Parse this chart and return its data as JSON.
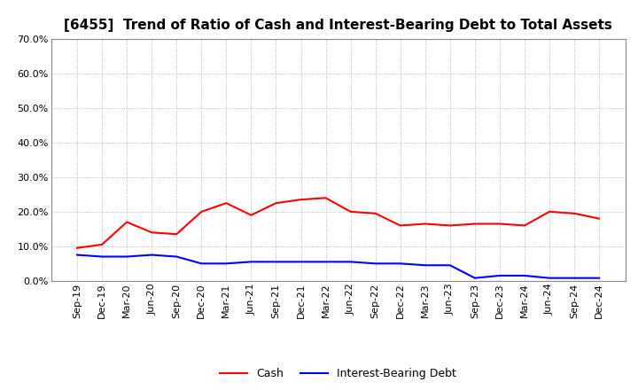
{
  "title": "[6455]  Trend of Ratio of Cash and Interest-Bearing Debt to Total Assets",
  "x_labels": [
    "Sep-19",
    "Dec-19",
    "Mar-20",
    "Jun-20",
    "Sep-20",
    "Dec-20",
    "Mar-21",
    "Jun-21",
    "Sep-21",
    "Dec-21",
    "Mar-22",
    "Jun-22",
    "Sep-22",
    "Dec-22",
    "Mar-23",
    "Jun-23",
    "Sep-23",
    "Dec-23",
    "Mar-24",
    "Jun-24",
    "Sep-24",
    "Dec-24"
  ],
  "cash": [
    9.5,
    10.5,
    17.0,
    14.0,
    13.5,
    20.0,
    22.5,
    19.0,
    22.5,
    23.5,
    24.0,
    20.0,
    19.5,
    16.0,
    16.5,
    16.0,
    16.5,
    16.5,
    16.0,
    20.0,
    19.5,
    18.0
  ],
  "interest_bearing_debt": [
    7.5,
    7.0,
    7.0,
    7.5,
    7.0,
    5.0,
    5.0,
    5.5,
    5.5,
    5.5,
    5.5,
    5.5,
    5.0,
    5.0,
    4.5,
    4.5,
    0.8,
    1.5,
    1.5,
    0.8,
    0.8,
    0.8
  ],
  "cash_color": "#FF0000",
  "debt_color": "#0000FF",
  "ylim": [
    0.0,
    70.0
  ],
  "yticks": [
    0.0,
    10.0,
    20.0,
    30.0,
    40.0,
    50.0,
    60.0,
    70.0
  ],
  "grid_color": "#aaaaaa",
  "bg_color": "#ffffff",
  "title_fontsize": 11,
  "axis_fontsize": 8,
  "legend_fontsize": 9
}
